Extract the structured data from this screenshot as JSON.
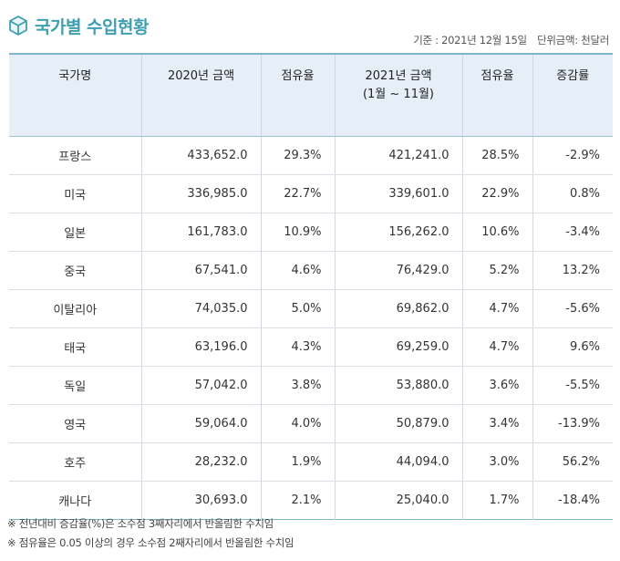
{
  "header": {
    "title": "국가별 수입현황",
    "icon": "cube-icon",
    "date_label": "기준 : 2021년 12월 15일",
    "unit_label": "단위금액: 천달러",
    "accent_color": "#3f9fb0"
  },
  "table": {
    "columns": [
      "국가명",
      "2020년 금액",
      "점유율",
      "2021년 금액",
      "(1월 ~ 11월)",
      "점유율",
      "증감률"
    ],
    "rows": [
      {
        "country": "프랑스",
        "amount_2020": "433,652.0",
        "share_2020": "29.3%",
        "amount_2021": "421,241.0",
        "share_2021": "28.5%",
        "change": "-2.9%"
      },
      {
        "country": "미국",
        "amount_2020": "336,985.0",
        "share_2020": "22.7%",
        "amount_2021": "339,601.0",
        "share_2021": "22.9%",
        "change": "0.8%"
      },
      {
        "country": "일본",
        "amount_2020": "161,783.0",
        "share_2020": "10.9%",
        "amount_2021": "156,262.0",
        "share_2021": "10.6%",
        "change": "-3.4%"
      },
      {
        "country": "중국",
        "amount_2020": "67,541.0",
        "share_2020": "4.6%",
        "amount_2021": "76,429.0",
        "share_2021": "5.2%",
        "change": "13.2%"
      },
      {
        "country": "이탈리아",
        "amount_2020": "74,035.0",
        "share_2020": "5.0%",
        "amount_2021": "69,862.0",
        "share_2021": "4.7%",
        "change": "-5.6%"
      },
      {
        "country": "태국",
        "amount_2020": "63,196.0",
        "share_2020": "4.3%",
        "amount_2021": "69,259.0",
        "share_2021": "4.7%",
        "change": "9.6%"
      },
      {
        "country": "독일",
        "amount_2020": "57,042.0",
        "share_2020": "3.8%",
        "amount_2021": "53,880.0",
        "share_2021": "3.6%",
        "change": "-5.5%"
      },
      {
        "country": "영국",
        "amount_2020": "59,064.0",
        "share_2020": "4.0%",
        "amount_2021": "50,879.0",
        "share_2021": "3.4%",
        "change": "-13.9%"
      },
      {
        "country": "호주",
        "amount_2020": "28,232.0",
        "share_2020": "1.9%",
        "amount_2021": "44,094.0",
        "share_2021": "3.0%",
        "change": "56.2%"
      },
      {
        "country": "캐나다",
        "amount_2020": "30,693.0",
        "share_2020": "2.1%",
        "amount_2021": "25,040.0",
        "share_2021": "1.7%",
        "change": "-18.4%"
      }
    ]
  },
  "notes": [
    "※ 전년대비 증감율(%)은 소수점 3째자리에서 반올림한 수치임",
    "※ 점유율은 0.05 이상의 경우 소수점 2째자리에서 반올림한 수치임"
  ]
}
